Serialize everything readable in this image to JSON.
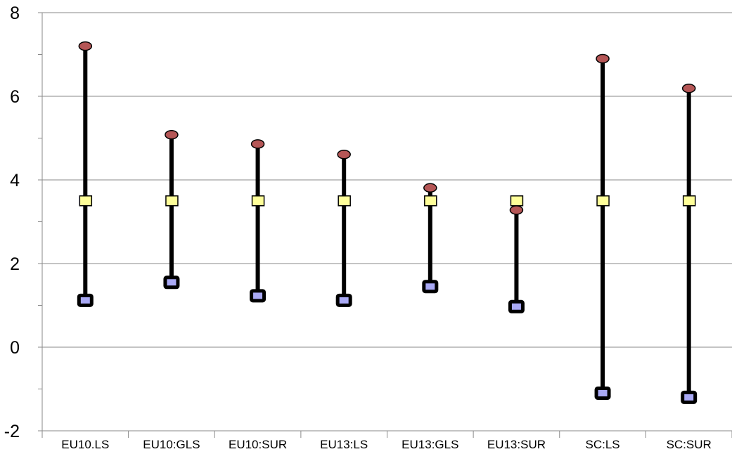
{
  "chart_data": {
    "type": "high-low-close",
    "categories": [
      "EU10.LS",
      "EU10:GLS",
      "EU10:SUR",
      "EU13:LS",
      "EU13:GLS",
      "EU13:SUR",
      "SC:LS",
      "SC:SUR"
    ],
    "series": [
      {
        "values": [
          7.2,
          5.08,
          4.86,
          4.61,
          3.81,
          3.28,
          6.9,
          6.19
        ],
        "marker": "ellipse",
        "color": "#b55656"
      },
      {
        "values": [
          1.12,
          1.55,
          1.23,
          1.12,
          1.45,
          0.97,
          -1.1,
          -1.2
        ],
        "marker": "square",
        "color": "#a9a9f5"
      },
      {
        "values": [
          3.5,
          3.5,
          3.5,
          3.5,
          3.5,
          3.5,
          3.5,
          3.5
        ],
        "marker": "square",
        "color": "#ffff99"
      }
    ],
    "y_ticks": [
      "8",
      "6",
      "4",
      "2",
      "0",
      "-2"
    ],
    "ylim": [
      -2,
      8
    ],
    "grid": true,
    "title": "",
    "xlabel": "",
    "ylabel": ""
  }
}
